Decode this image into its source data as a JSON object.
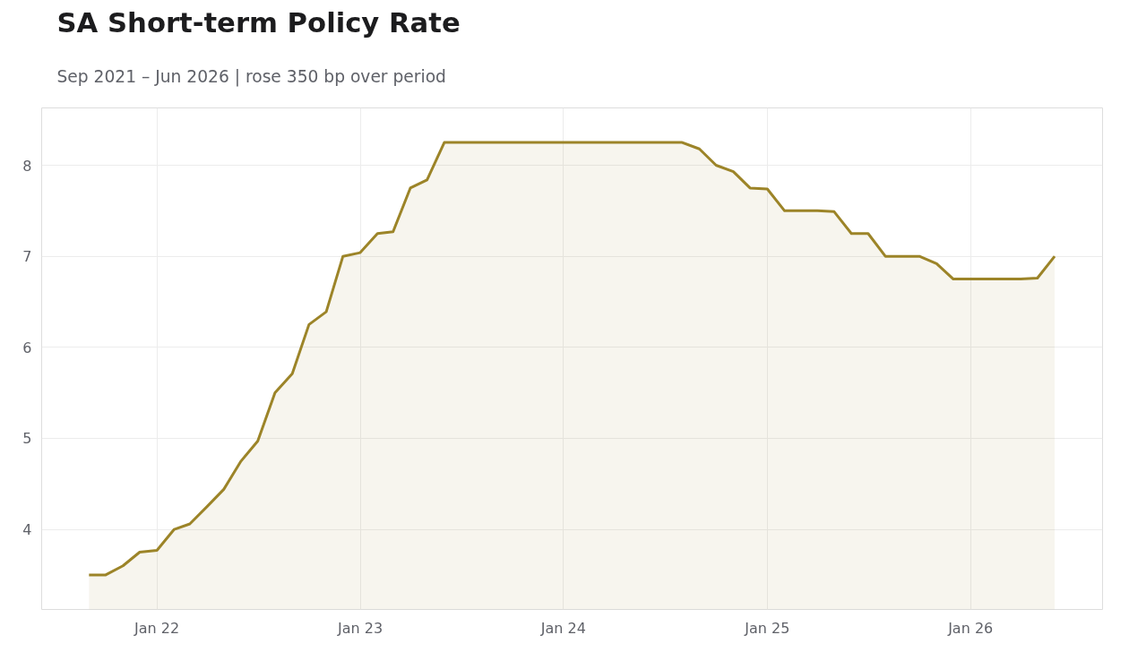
{
  "chart_data": {
    "type": "area",
    "title": "SA Short-term Policy Rate",
    "subtitle": "Sep 2021 – Jun 2026 | rose 350 bp over period",
    "x": [
      "2021-09",
      "2021-10",
      "2021-11",
      "2021-12",
      "2022-01",
      "2022-02",
      "2022-03",
      "2022-04",
      "2022-05",
      "2022-06",
      "2022-07",
      "2022-08",
      "2022-09",
      "2022-10",
      "2022-11",
      "2022-12",
      "2023-01",
      "2023-02",
      "2023-03",
      "2023-04",
      "2023-05",
      "2023-06",
      "2023-07",
      "2023-08",
      "2023-09",
      "2023-10",
      "2023-11",
      "2023-12",
      "2024-01",
      "2024-02",
      "2024-03",
      "2024-04",
      "2024-05",
      "2024-06",
      "2024-07",
      "2024-08",
      "2024-09",
      "2024-10",
      "2024-11",
      "2024-12",
      "2025-01",
      "2025-02",
      "2025-03",
      "2025-04",
      "2025-05",
      "2025-06",
      "2025-07",
      "2025-08",
      "2025-09",
      "2025-10",
      "2025-11",
      "2025-12",
      "2026-01",
      "2026-02",
      "2026-03",
      "2026-04",
      "2026-05",
      "2026-06"
    ],
    "series": [
      {
        "color": "#9c8428",
        "values": [
          3.5,
          3.5,
          3.6,
          3.75,
          3.77,
          4.0,
          4.06,
          4.25,
          4.44,
          4.75,
          4.97,
          5.5,
          5.71,
          6.25,
          6.39,
          7.0,
          7.04,
          7.25,
          7.27,
          7.75,
          7.84,
          8.25,
          8.25,
          8.25,
          8.25,
          8.25,
          8.25,
          8.25,
          8.25,
          8.25,
          8.25,
          8.25,
          8.25,
          8.25,
          8.25,
          8.25,
          8.18,
          8.0,
          7.93,
          7.75,
          7.74,
          7.5,
          7.5,
          7.5,
          7.49,
          7.25,
          7.25,
          7.0,
          7.0,
          7.0,
          6.92,
          6.75,
          6.75,
          6.75,
          6.75,
          6.75,
          6.76,
          7.0
        ]
      }
    ],
    "xlim": [
      "2021-06-08",
      "2026-08-26"
    ],
    "ylim": [
      3.12,
      8.63
    ],
    "xticks": [
      {
        "value": "2022-01-01",
        "label": "Jan 22"
      },
      {
        "value": "2023-01-01",
        "label": "Jan 23"
      },
      {
        "value": "2024-01-01",
        "label": "Jan 24"
      },
      {
        "value": "2025-01-01",
        "label": "Jan 25"
      },
      {
        "value": "2026-01-01",
        "label": "Jan 26"
      }
    ],
    "yticks": [
      4,
      5,
      6,
      7,
      8
    ],
    "grid": true
  }
}
